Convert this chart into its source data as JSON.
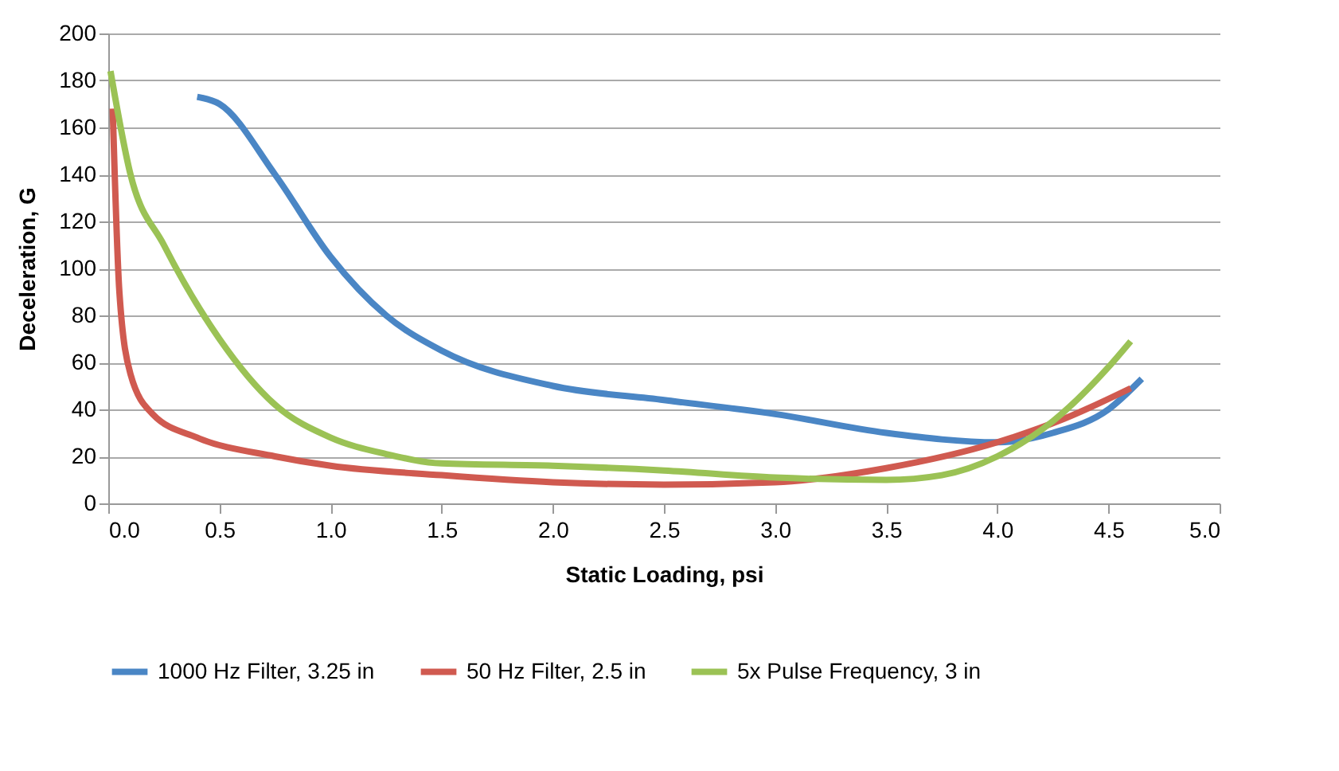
{
  "chart_data": {
    "type": "line",
    "xlabel": "Static Loading, psi",
    "ylabel": "Deceleration, G",
    "xlim": [
      0,
      5
    ],
    "ylim": [
      0,
      200
    ],
    "xticks": [
      {
        "value": 0,
        "label": "0.0"
      },
      {
        "value": 0.5,
        "label": "0.5"
      },
      {
        "value": 1,
        "label": "1.0"
      },
      {
        "value": 1.5,
        "label": "1.5"
      },
      {
        "value": 2,
        "label": "2.0"
      },
      {
        "value": 2.5,
        "label": "2.5"
      },
      {
        "value": 3,
        "label": "3.0"
      },
      {
        "value": 3.5,
        "label": "3.5"
      },
      {
        "value": 4,
        "label": "4.0"
      },
      {
        "value": 4.5,
        "label": "4.5"
      },
      {
        "value": 5,
        "label": "5.0"
      }
    ],
    "yticks": [
      0,
      20,
      40,
      60,
      80,
      100,
      120,
      140,
      160,
      180,
      200
    ],
    "grid": "y",
    "legend": "bottom",
    "marker": "none",
    "line_style": "solid",
    "series": [
      {
        "name": "1000 Hz Filter, 3.25 in",
        "color": "#4a86c5",
        "x": [
          0.4,
          0.5,
          0.75,
          1.0,
          1.25,
          1.5,
          2.0,
          2.5,
          3.0,
          3.5,
          4.0,
          4.25,
          4.5,
          4.65
        ],
        "values": [
          173,
          170,
          140,
          105,
          80,
          65,
          50,
          44,
          38,
          30,
          26,
          30,
          40,
          53
        ]
      },
      {
        "name": "50 Hz Filter, 2.5 in",
        "color": "#d05a50",
        "x": [
          0.02,
          0.05,
          0.1,
          0.2,
          0.4,
          0.75,
          1.0,
          1.5,
          2.0,
          2.5,
          3.0,
          3.5,
          4.0,
          4.3,
          4.6
        ],
        "values": [
          168,
          90,
          55,
          38,
          28,
          20,
          16,
          12,
          9,
          8,
          9,
          15,
          26,
          36,
          49
        ]
      },
      {
        "name": "5x Pulse Frequency, 3 in",
        "color": "#9bc255",
        "x": [
          0.01,
          0.1,
          0.25,
          0.5,
          0.75,
          1.0,
          1.25,
          1.5,
          2.0,
          2.5,
          3.0,
          3.5,
          3.75,
          4.0,
          4.25,
          4.5,
          4.6
        ],
        "values": [
          184,
          140,
          110,
          70,
          42,
          28,
          21,
          17,
          16,
          14,
          11,
          10,
          12,
          20,
          35,
          58,
          69
        ]
      }
    ]
  }
}
